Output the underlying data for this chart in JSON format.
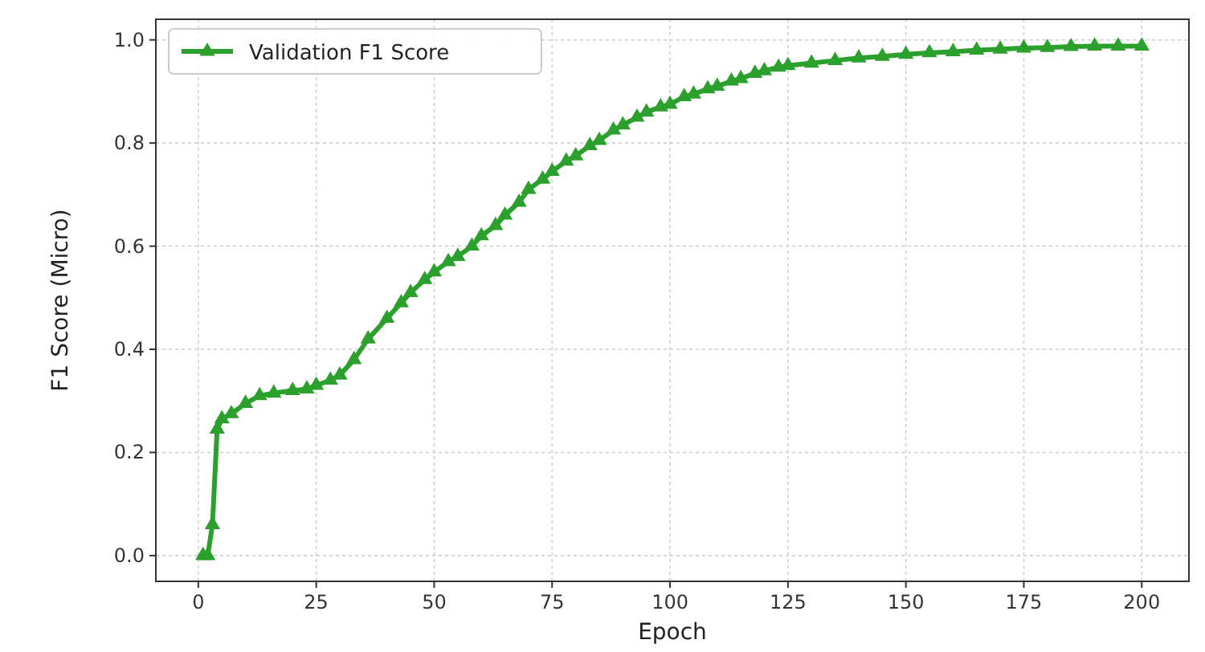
{
  "chart_data": {
    "type": "line",
    "xlabel": "Epoch",
    "ylabel": "F1 Score (Micro)",
    "xlim": [
      -9,
      210
    ],
    "ylim": [
      -0.05,
      1.04
    ],
    "xticks": [
      0,
      25,
      50,
      75,
      100,
      125,
      150,
      175,
      200
    ],
    "yticks": [
      {
        "value": 0,
        "label": "0.0"
      },
      {
        "value": 0.2,
        "label": "0.2"
      },
      {
        "value": 0.4,
        "label": "0.4"
      },
      {
        "value": 0.6,
        "label": "0.6"
      },
      {
        "value": 0.8,
        "label": "0.8"
      },
      {
        "value": 1,
        "label": "1.0"
      }
    ],
    "grid": true,
    "legend": "top left",
    "marker": "triangle",
    "line_style": "solid",
    "series": [
      {
        "name": "Validation F1 Score",
        "color": "#2ca02c",
        "x": [
          1,
          2,
          3,
          4,
          5,
          7,
          10,
          13,
          16,
          20,
          23,
          25,
          28,
          30,
          33,
          36,
          40,
          43,
          45,
          48,
          50,
          53,
          55,
          58,
          60,
          63,
          65,
          68,
          70,
          73,
          75,
          78,
          80,
          83,
          85,
          88,
          90,
          93,
          95,
          98,
          100,
          103,
          105,
          108,
          110,
          113,
          115,
          118,
          120,
          123,
          125,
          130,
          135,
          140,
          145,
          150,
          155,
          160,
          165,
          170,
          175,
          180,
          185,
          190,
          195,
          200
        ],
        "values": [
          0,
          0,
          0.06,
          0.245,
          0.265,
          0.275,
          0.295,
          0.31,
          0.315,
          0.32,
          0.323,
          0.33,
          0.34,
          0.35,
          0.38,
          0.42,
          0.46,
          0.49,
          0.51,
          0.535,
          0.55,
          0.57,
          0.58,
          0.6,
          0.62,
          0.64,
          0.66,
          0.685,
          0.71,
          0.73,
          0.745,
          0.765,
          0.775,
          0.795,
          0.805,
          0.825,
          0.835,
          0.85,
          0.86,
          0.87,
          0.875,
          0.89,
          0.895,
          0.905,
          0.91,
          0.92,
          0.925,
          0.935,
          0.94,
          0.947,
          0.95,
          0.955,
          0.96,
          0.965,
          0.968,
          0.972,
          0.975,
          0.977,
          0.98,
          0.982,
          0.984,
          0.985,
          0.987,
          0.988,
          0.988,
          0.988
        ]
      }
    ]
  }
}
